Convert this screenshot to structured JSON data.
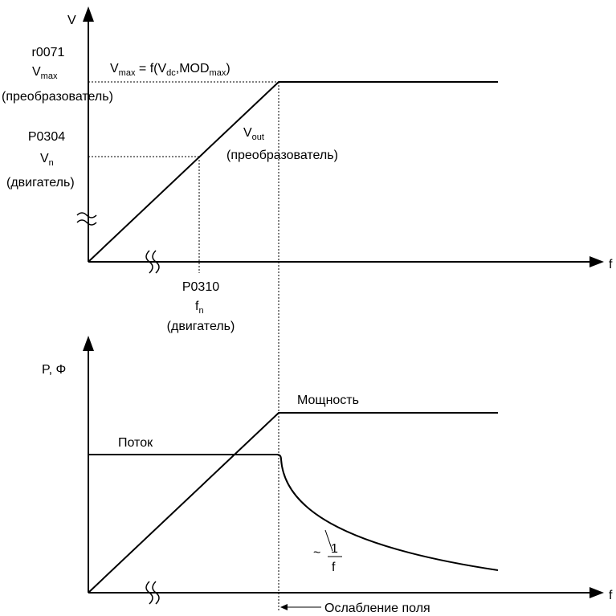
{
  "top_chart": {
    "axis_y_label": "V",
    "axis_x_label": "f",
    "vmax_param": "r0071",
    "vmax_symbol": "V",
    "vmax_sub": "max",
    "vmax_caption": "(преобразователь)",
    "vn_param": "P0304",
    "vn_symbol": "V",
    "vn_sub": "n",
    "vn_caption": "(двигатель)",
    "formula_v": "V",
    "formula_v_sub": "max",
    "formula_mid": " = f(V",
    "formula_dc_sub": "dc",
    "formula_mod": ",MOD",
    "formula_mod_sub": "max",
    "formula_end": ")",
    "vout_symbol": "V",
    "vout_sub": "out",
    "vout_caption": "(преобразователь)",
    "fn_param": "P0310",
    "fn_symbol": "f",
    "fn_sub": "n",
    "fn_caption": "(двигатель)"
  },
  "bottom_chart": {
    "axis_y_label": "P, Φ",
    "axis_x_label": "f",
    "power_label": "Мощность",
    "flux_label": "Поток",
    "inverse_tilde": "~",
    "inverse_num": "1",
    "inverse_den": "f",
    "field_weakening_label": "Ослабление поля"
  }
}
